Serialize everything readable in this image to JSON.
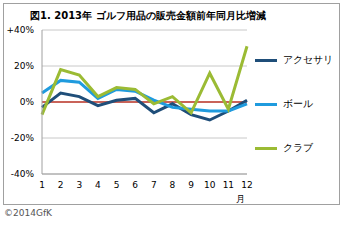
{
  "chart_data": {
    "type": "line",
    "title": "図1. 2013年 ゴルフ用品の販売金額前年同月比増減",
    "source": "©2014GfK",
    "x_label": "月",
    "categories": [
      "1",
      "2",
      "3",
      "4",
      "5",
      "6",
      "7",
      "8",
      "9",
      "10",
      "11",
      "12"
    ],
    "series": [
      {
        "name": "アクセサリ",
        "color": "#1f4e79",
        "values": [
          -3,
          5,
          3,
          -2,
          1,
          2,
          -6,
          -1,
          -7,
          -10,
          -5,
          1
        ]
      },
      {
        "name": "ボール",
        "color": "#1f9bde",
        "values": [
          5,
          12,
          11,
          2,
          7,
          6,
          1,
          -3,
          -4,
          -5,
          -5,
          -1
        ]
      },
      {
        "name": "クラブ",
        "color": "#9bbb34",
        "values": [
          -7,
          18,
          15,
          3,
          8,
          7,
          -1,
          3,
          -6,
          16,
          -4,
          31
        ]
      }
    ],
    "ylim": [
      -40,
      40
    ],
    "yticks": [
      {
        "value": -40,
        "label": "-40%"
      },
      {
        "value": -20,
        "label": "-20%"
      },
      {
        "value": 0,
        "label": "0%"
      },
      {
        "value": 20,
        "label": "20%"
      },
      {
        "value": 40,
        "label": "+40%"
      }
    ],
    "grid": true,
    "legend": "right"
  }
}
